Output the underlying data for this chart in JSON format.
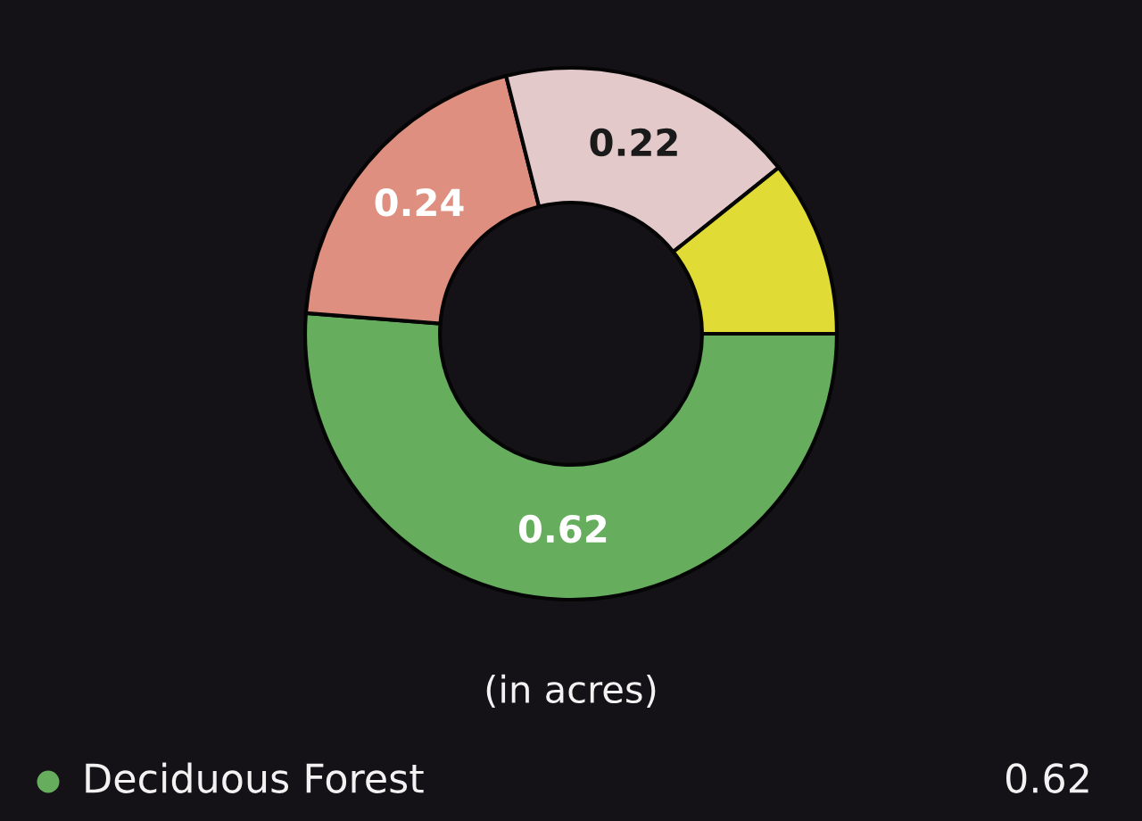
{
  "chart_data": {
    "type": "donut",
    "categories": [
      "Deciduous Forest",
      null,
      null,
      null
    ],
    "values": [
      0.62,
      0.24,
      0.22,
      0.13
    ],
    "colors": [
      "#66ad5e",
      "#de8f7f",
      "#e3c9c9",
      "#e1dc35"
    ],
    "value_labels": [
      "0.62",
      "0.24",
      "0.22",
      null
    ],
    "annotations": [
      "(in acres)"
    ],
    "legend": "bottom"
  }
}
